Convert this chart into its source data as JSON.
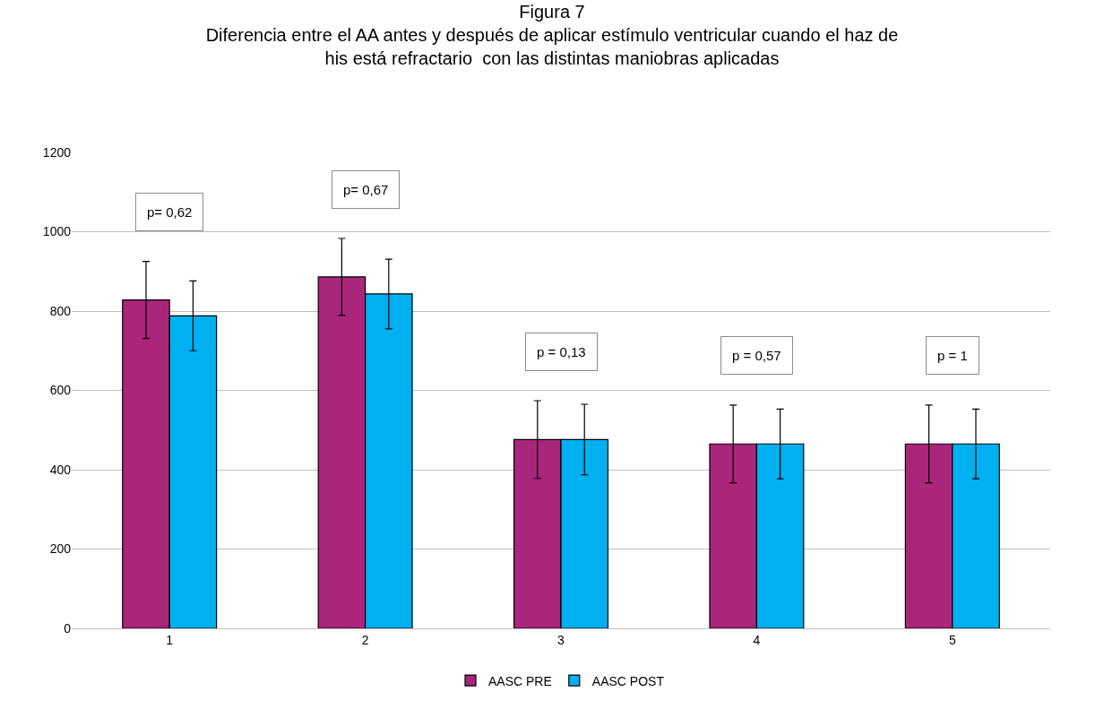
{
  "chart_data": {
    "type": "bar",
    "title": "Figura 7",
    "subtitle": "Diferencia entre el AA antes y después de aplicar estímulo ventricular cuando el haz de\nhis está refractario  con las distintas maniobras aplicadas",
    "categories": [
      "1",
      "2",
      "3",
      "4",
      "5"
    ],
    "series": [
      {
        "name": "AASC PRE",
        "color": "#a9267a",
        "values": [
          828,
          886,
          476,
          465,
          465
        ],
        "errors": [
          97,
          97,
          98,
          98,
          98
        ]
      },
      {
        "name": "AASC POST",
        "color": "#00b0f0",
        "values": [
          788,
          843,
          476,
          465,
          465
        ],
        "errors": [
          88,
          88,
          89,
          88,
          88
        ]
      }
    ],
    "annotations": [
      "p= 0,62",
      "p= 0,67",
      "p = 0,13",
      "p = 0,57",
      "p = 1"
    ],
    "ylim": [
      0,
      1200
    ],
    "yticks": [
      0,
      200,
      400,
      600,
      800,
      1000,
      1200
    ],
    "grid": "y",
    "legend": "bottom"
  }
}
